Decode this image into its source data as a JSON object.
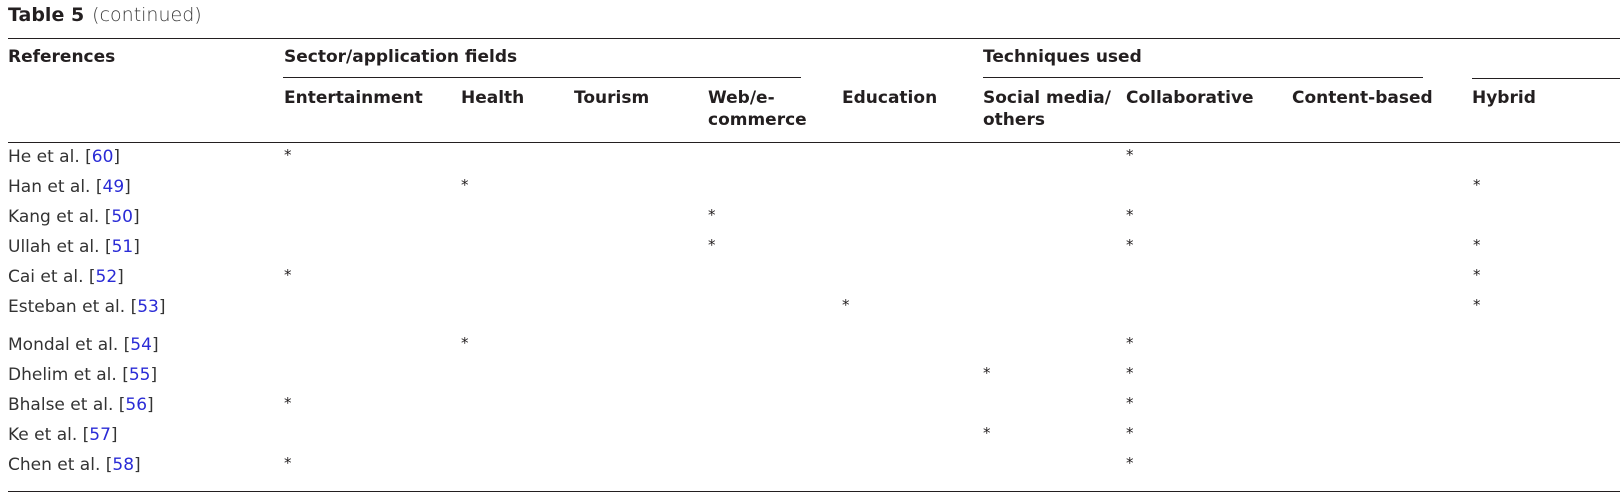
{
  "caption": {
    "label": "Table 5",
    "sub": "(continued)"
  },
  "headers": {
    "references": "References",
    "sector_group": "Sector/application fields",
    "techniques_group": "Techniques used",
    "entertainment": "Entertainment",
    "health": "Health",
    "tourism": "Tourism",
    "web_line1": "Web/e-",
    "web_line2": "commerce",
    "education": "Education",
    "social_line1": "Social media/",
    "social_line2": "others",
    "collaborative": "Collaborative",
    "content_based": "Content-based",
    "hybrid": "Hybrid"
  },
  "mark_symbol": "*",
  "rows": [
    {
      "author": "He et al. [",
      "num": "60",
      "close": "]",
      "marks": [
        "entertainment",
        "collaborative"
      ]
    },
    {
      "author": "Han et al. [",
      "num": "49",
      "close": "]",
      "marks": [
        "health",
        "hybrid"
      ]
    },
    {
      "author": "Kang et al. [",
      "num": "50",
      "close": "]",
      "marks": [
        "web",
        "collaborative"
      ]
    },
    {
      "author": "Ullah et al. [",
      "num": "51",
      "close": "]",
      "marks": [
        "web",
        "collaborative",
        "hybrid"
      ]
    },
    {
      "author": "Cai et al. [",
      "num": "52",
      "close": "]",
      "marks": [
        "entertainment",
        "hybrid"
      ]
    },
    {
      "author": "Esteban et al. [",
      "num": "53",
      "close": "]",
      "marks": [
        "education",
        "hybrid"
      ]
    },
    {
      "author": "Mondal et al. [",
      "num": "54",
      "close": "]",
      "marks": [
        "health",
        "collaborative"
      ]
    },
    {
      "author": "Dhelim et al. [",
      "num": "55",
      "close": "]",
      "marks": [
        "social",
        "collaborative"
      ]
    },
    {
      "author": "Bhalse et al. [",
      "num": "56",
      "close": "]",
      "marks": [
        "entertainment",
        "collaborative"
      ]
    },
    {
      "author": "Ke et al. [",
      "num": "57",
      "close": "]",
      "marks": [
        "social",
        "collaborative"
      ]
    },
    {
      "author": "Chen et al. [",
      "num": "58",
      "close": "]",
      "marks": [
        "entertainment",
        "collaborative"
      ]
    }
  ]
}
